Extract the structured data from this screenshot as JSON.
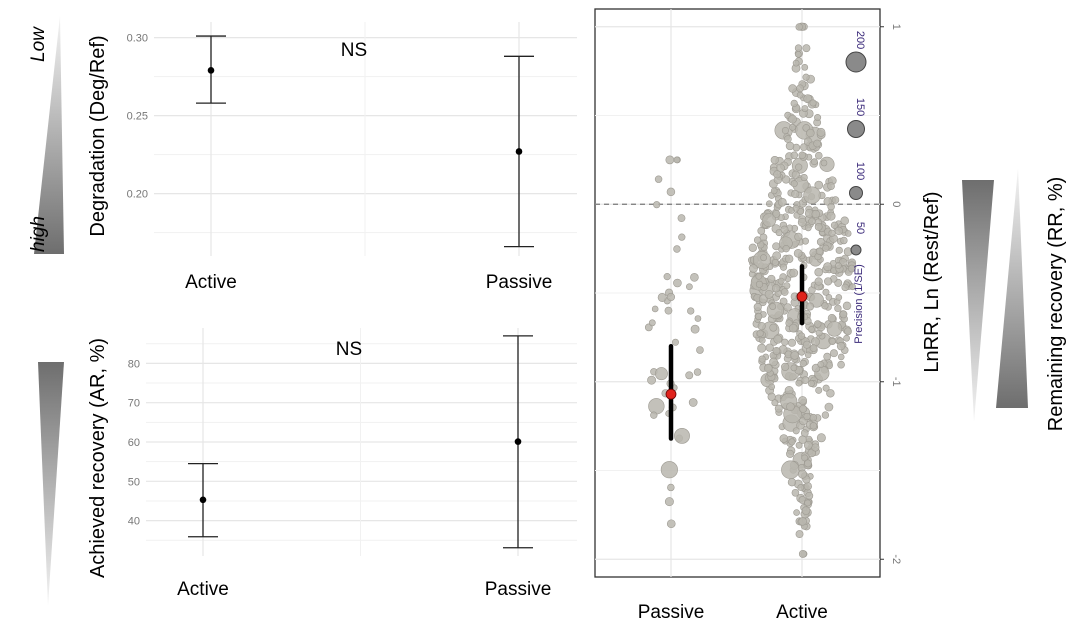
{
  "colors": {
    "point_fill": "#b9b6ae",
    "point_stroke": "#9d9a92",
    "mean_red": "#e0231c",
    "error_bar": "#222222",
    "gradient_dark": "#6e6e6e",
    "gradient_light": "#f4f4f4"
  },
  "decor": {
    "low_label": "Low",
    "high_label": "high"
  },
  "chart_data": [
    {
      "id": "degradation",
      "type": "scatter",
      "categories": [
        "Active",
        "Passive"
      ],
      "mean": [
        0.279,
        0.227
      ],
      "lower": [
        0.258,
        0.166
      ],
      "upper": [
        0.301,
        0.288
      ],
      "ylabel": "Degradation (Deg/Ref)",
      "ylim": [
        0.16,
        0.31
      ],
      "yticks": [
        0.2,
        0.25,
        0.3
      ],
      "ytick_labels": [
        "0.20",
        "0.25",
        "0.30"
      ],
      "annotation": "NS",
      "grid": true
    },
    {
      "id": "achieved_recovery",
      "type": "scatter",
      "categories": [
        "Active",
        "Passive"
      ],
      "mean": [
        45.3,
        60.1
      ],
      "lower": [
        35.9,
        33.1
      ],
      "upper": [
        54.5,
        87.0
      ],
      "ylabel": "Achieved recovery (AR, %)",
      "ylim": [
        31,
        89
      ],
      "yticks": [
        40,
        50,
        60,
        70,
        80
      ],
      "ytick_labels": [
        "40",
        "50",
        "60",
        "70",
        "80"
      ],
      "annotation": "NS",
      "grid": true
    },
    {
      "id": "lnrr_orchard",
      "type": "scatter",
      "categories": [
        "Passive",
        "Active"
      ],
      "mean": [
        -1.07,
        -0.52
      ],
      "ci": [
        [
          -1.32,
          -0.8
        ],
        [
          -0.67,
          -0.35
        ]
      ],
      "ylabel": "LnRR, Ln (Rest/Ref)",
      "secondary_label": "Remaining recovery (RR, %)",
      "ylim": [
        -2.1,
        1.1
      ],
      "yticks": [
        1,
        0,
        -1,
        -2
      ],
      "ytick_labels": [
        "1",
        "0",
        "-1",
        "-2"
      ],
      "reference_line": 0,
      "precision_legend": {
        "title": "Precision (1/SE)",
        "values": [
          50,
          100,
          150,
          200
        ],
        "labels": [
          "50",
          "100",
          "150",
          "200"
        ]
      },
      "grid": true
    }
  ]
}
